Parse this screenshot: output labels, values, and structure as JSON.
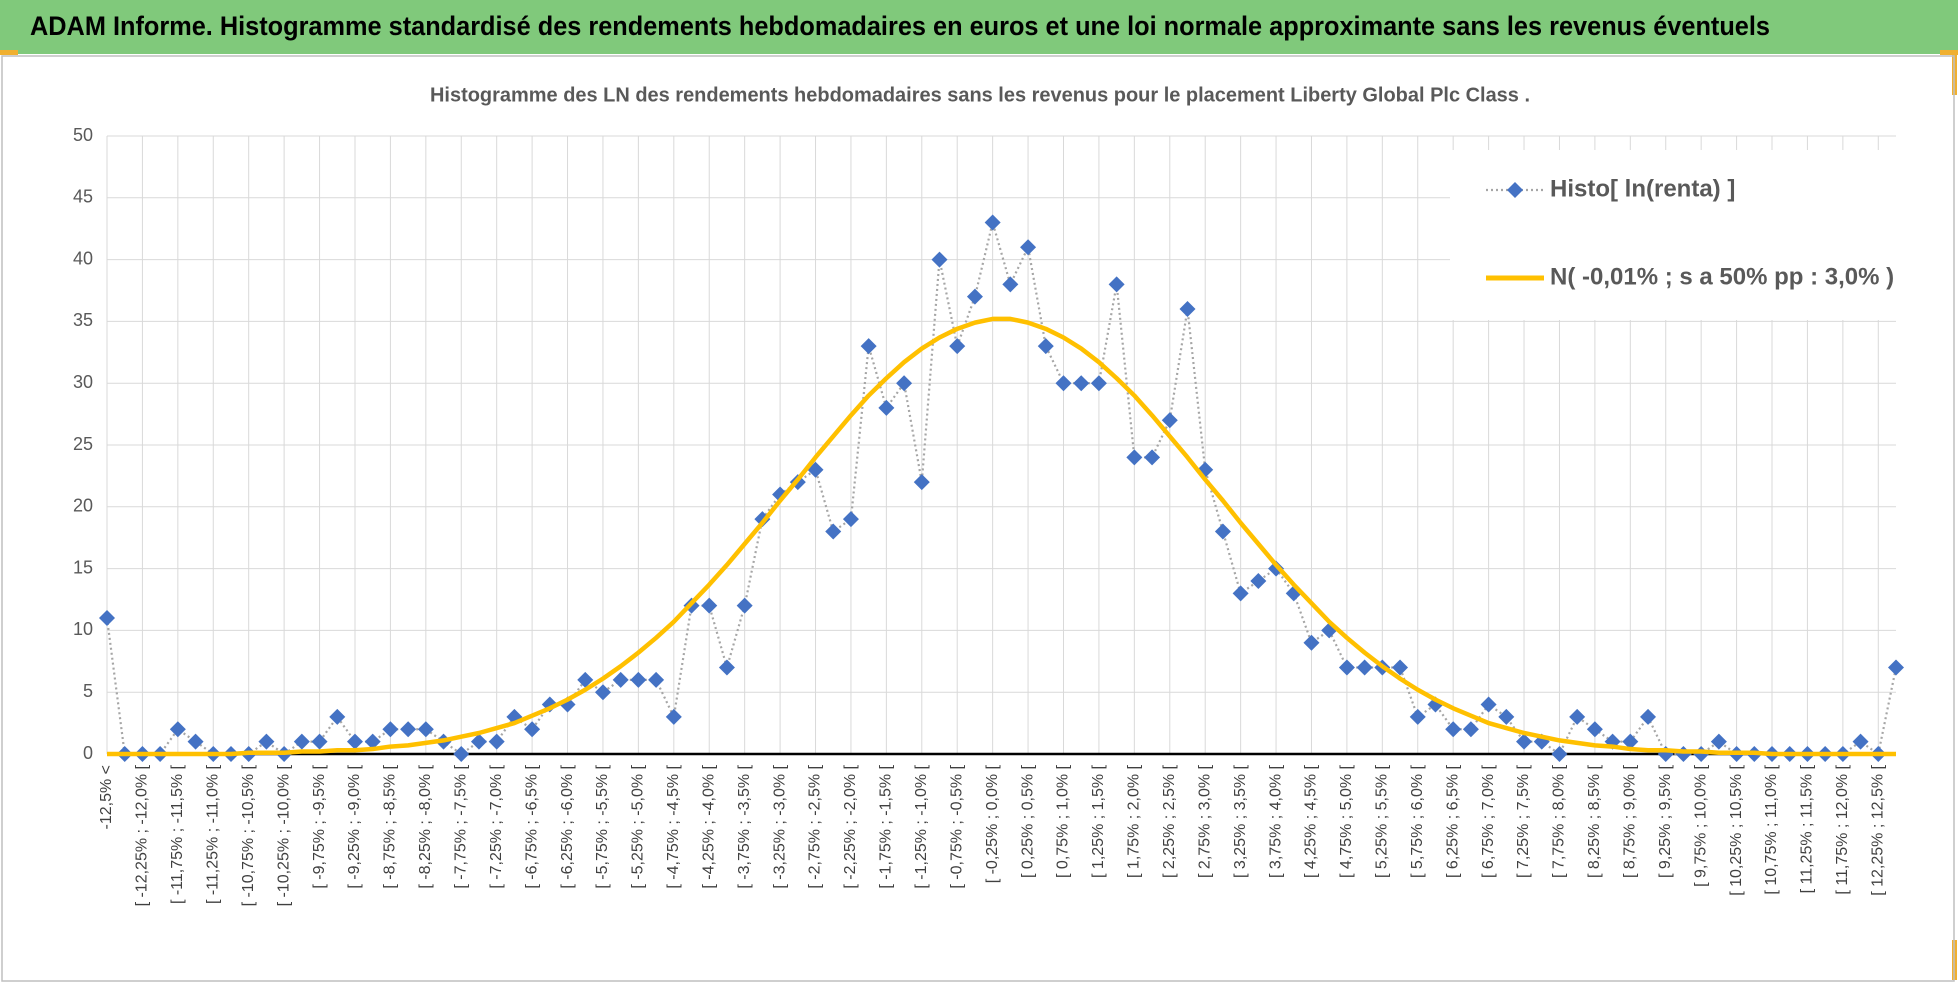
{
  "header": {
    "title": "ADAM Informe. Histogramme standardisé des rendements hebdomadaires en euros et une loi normale approximante sans les revenus éventuels"
  },
  "chart_data": {
    "type": "line",
    "title": "Histogramme  des LN des rendements hebdomadaires sans les revenus pour le placement Liberty Global Plc Class .",
    "categories": [
      "-12,5% <",
      null,
      "[ -12,25% ; -12,0% [",
      null,
      "[ -11,75% ; -11,5% [",
      null,
      "[ -11,25% ; -11,0% [",
      null,
      "[ -10,75% ; -10,5% [",
      null,
      "[ -10,25% ; -10,0% [",
      null,
      "[ -9,75% ; -9,5% [",
      null,
      "[ -9,25% ; -9,0% [",
      null,
      "[ -8,75% ; -8,5% [",
      null,
      "[ -8,25% ; -8,0% [",
      null,
      "[ -7,75% ; -7,5% [",
      null,
      "[ -7,25% ; -7,0% [",
      null,
      "[ -6,75% ; -6,5% [",
      null,
      "[ -6,25% ; -6,0% [",
      null,
      "[ -5,75% ; -5,5% [",
      null,
      "[ -5,25% ; -5,0% [",
      null,
      "[ -4,75% ; -4,5% [",
      null,
      "[ -4,25% ; -4,0% [",
      null,
      "[ -3,75% ; -3,5% [",
      null,
      "[ -3,25% ; -3,0% [",
      null,
      "[ -2,75% ; -2,5% [",
      null,
      "[ -2,25% ; -2,0% [",
      null,
      "[ -1,75% ; -1,5% [",
      null,
      "[ -1,25% ; -1,0% [",
      null,
      "[ -0,75% ; -0,5% [",
      null,
      "[ -0,25% ; 0,0% [",
      null,
      "[ 0,25% ; 0,5% [",
      null,
      "[ 0,75% ; 1,0% [",
      null,
      "[ 1,25% ; 1,5% [",
      null,
      "[ 1,75% ; 2,0% [",
      null,
      "[ 2,25% ; 2,5% [",
      null,
      "[ 2,75% ; 3,0% [",
      null,
      "[ 3,25% ; 3,5% [",
      null,
      "[ 3,75% ; 4,0% [",
      null,
      "[ 4,25% ; 4,5% [",
      null,
      "[ 4,75% ; 5,0% [",
      null,
      "[ 5,25% ; 5,5% [",
      null,
      "[ 5,75% ; 6,0% [",
      null,
      "[ 6,25% ; 6,5% [",
      null,
      "[ 6,75% ; 7,0% [",
      null,
      "[ 7,25% ; 7,5% [",
      null,
      "[ 7,75% ; 8,0% [",
      null,
      "[ 8,25% ; 8,5% [",
      null,
      "[ 8,75% ; 9,0% [",
      null,
      "[ 9,25% ; 9,5% [",
      null,
      "[ 9,75% ; 10,0% [",
      null,
      "[ 10,25% ; 10,5% [",
      null,
      "[ 10,75% ; 11,0% [",
      null,
      "[ 11,25% ; 11,5% [",
      null,
      "[ 11,75% ; 12,0% [",
      null,
      "[ 12,25% ; 12,5% [",
      null
    ],
    "series": [
      {
        "name": "Histo[ ln(renta) ]",
        "color": "#4472c4",
        "line_color": "#a6a6a6",
        "line_style": "dotted",
        "marker": "diamond",
        "values": [
          11,
          0,
          0,
          0,
          2,
          1,
          0,
          0,
          0,
          1,
          0,
          1,
          1,
          3,
          1,
          1,
          2,
          2,
          2,
          1,
          0,
          1,
          1,
          3,
          2,
          4,
          4,
          6,
          5,
          6,
          6,
          6,
          3,
          12,
          12,
          7,
          12,
          19,
          21,
          22,
          23,
          18,
          19,
          33,
          28,
          30,
          22,
          40,
          33,
          37,
          43,
          38,
          41,
          33,
          30,
          30,
          30,
          38,
          24,
          24,
          27,
          36,
          23,
          18,
          13,
          14,
          15,
          13,
          9,
          10,
          7,
          7,
          7,
          7,
          3,
          4,
          2,
          2,
          4,
          3,
          1,
          1,
          0,
          3,
          2,
          1,
          1,
          3,
          0,
          0,
          0,
          1,
          0,
          0,
          0,
          0,
          0,
          0,
          0,
          1,
          0,
          7
        ]
      },
      {
        "name": "N( -0,01% ; s a 50% pp : 3,0% )",
        "color": "#ffc000",
        "line_style": "solid",
        "values": [
          0,
          0,
          0,
          0,
          0,
          0,
          0,
          0,
          0.1,
          0.1,
          0.1,
          0.2,
          0.2,
          0.3,
          0.3,
          0.4,
          0.6,
          0.7,
          0.9,
          1.1,
          1.4,
          1.7,
          2.1,
          2.5,
          3.1,
          3.7,
          4.4,
          5.2,
          6.1,
          7.1,
          8.2,
          9.4,
          10.7,
          12.2,
          13.7,
          15.3,
          17.0,
          18.7,
          20.5,
          22.2,
          24.0,
          25.7,
          27.4,
          29.0,
          30.4,
          31.7,
          32.8,
          33.7,
          34.4,
          34.9,
          35.2,
          35.2,
          34.9,
          34.4,
          33.7,
          32.8,
          31.7,
          30.4,
          29.0,
          27.4,
          25.7,
          24.0,
          22.2,
          20.5,
          18.7,
          17.0,
          15.3,
          13.7,
          12.2,
          10.7,
          9.4,
          8.2,
          7.1,
          6.1,
          5.2,
          4.4,
          3.7,
          3.1,
          2.5,
          2.1,
          1.7,
          1.4,
          1.1,
          0.9,
          0.7,
          0.6,
          0.4,
          0.3,
          0.3,
          0.2,
          0.2,
          0.1,
          0.1,
          0.1,
          0,
          0,
          0,
          0,
          0,
          0,
          0,
          0
        ]
      }
    ],
    "ylim": [
      0,
      50
    ],
    "yticks": [
      0,
      5,
      10,
      15,
      20,
      25,
      30,
      35,
      40,
      45,
      50
    ],
    "grid": true,
    "legend": "upper right"
  }
}
